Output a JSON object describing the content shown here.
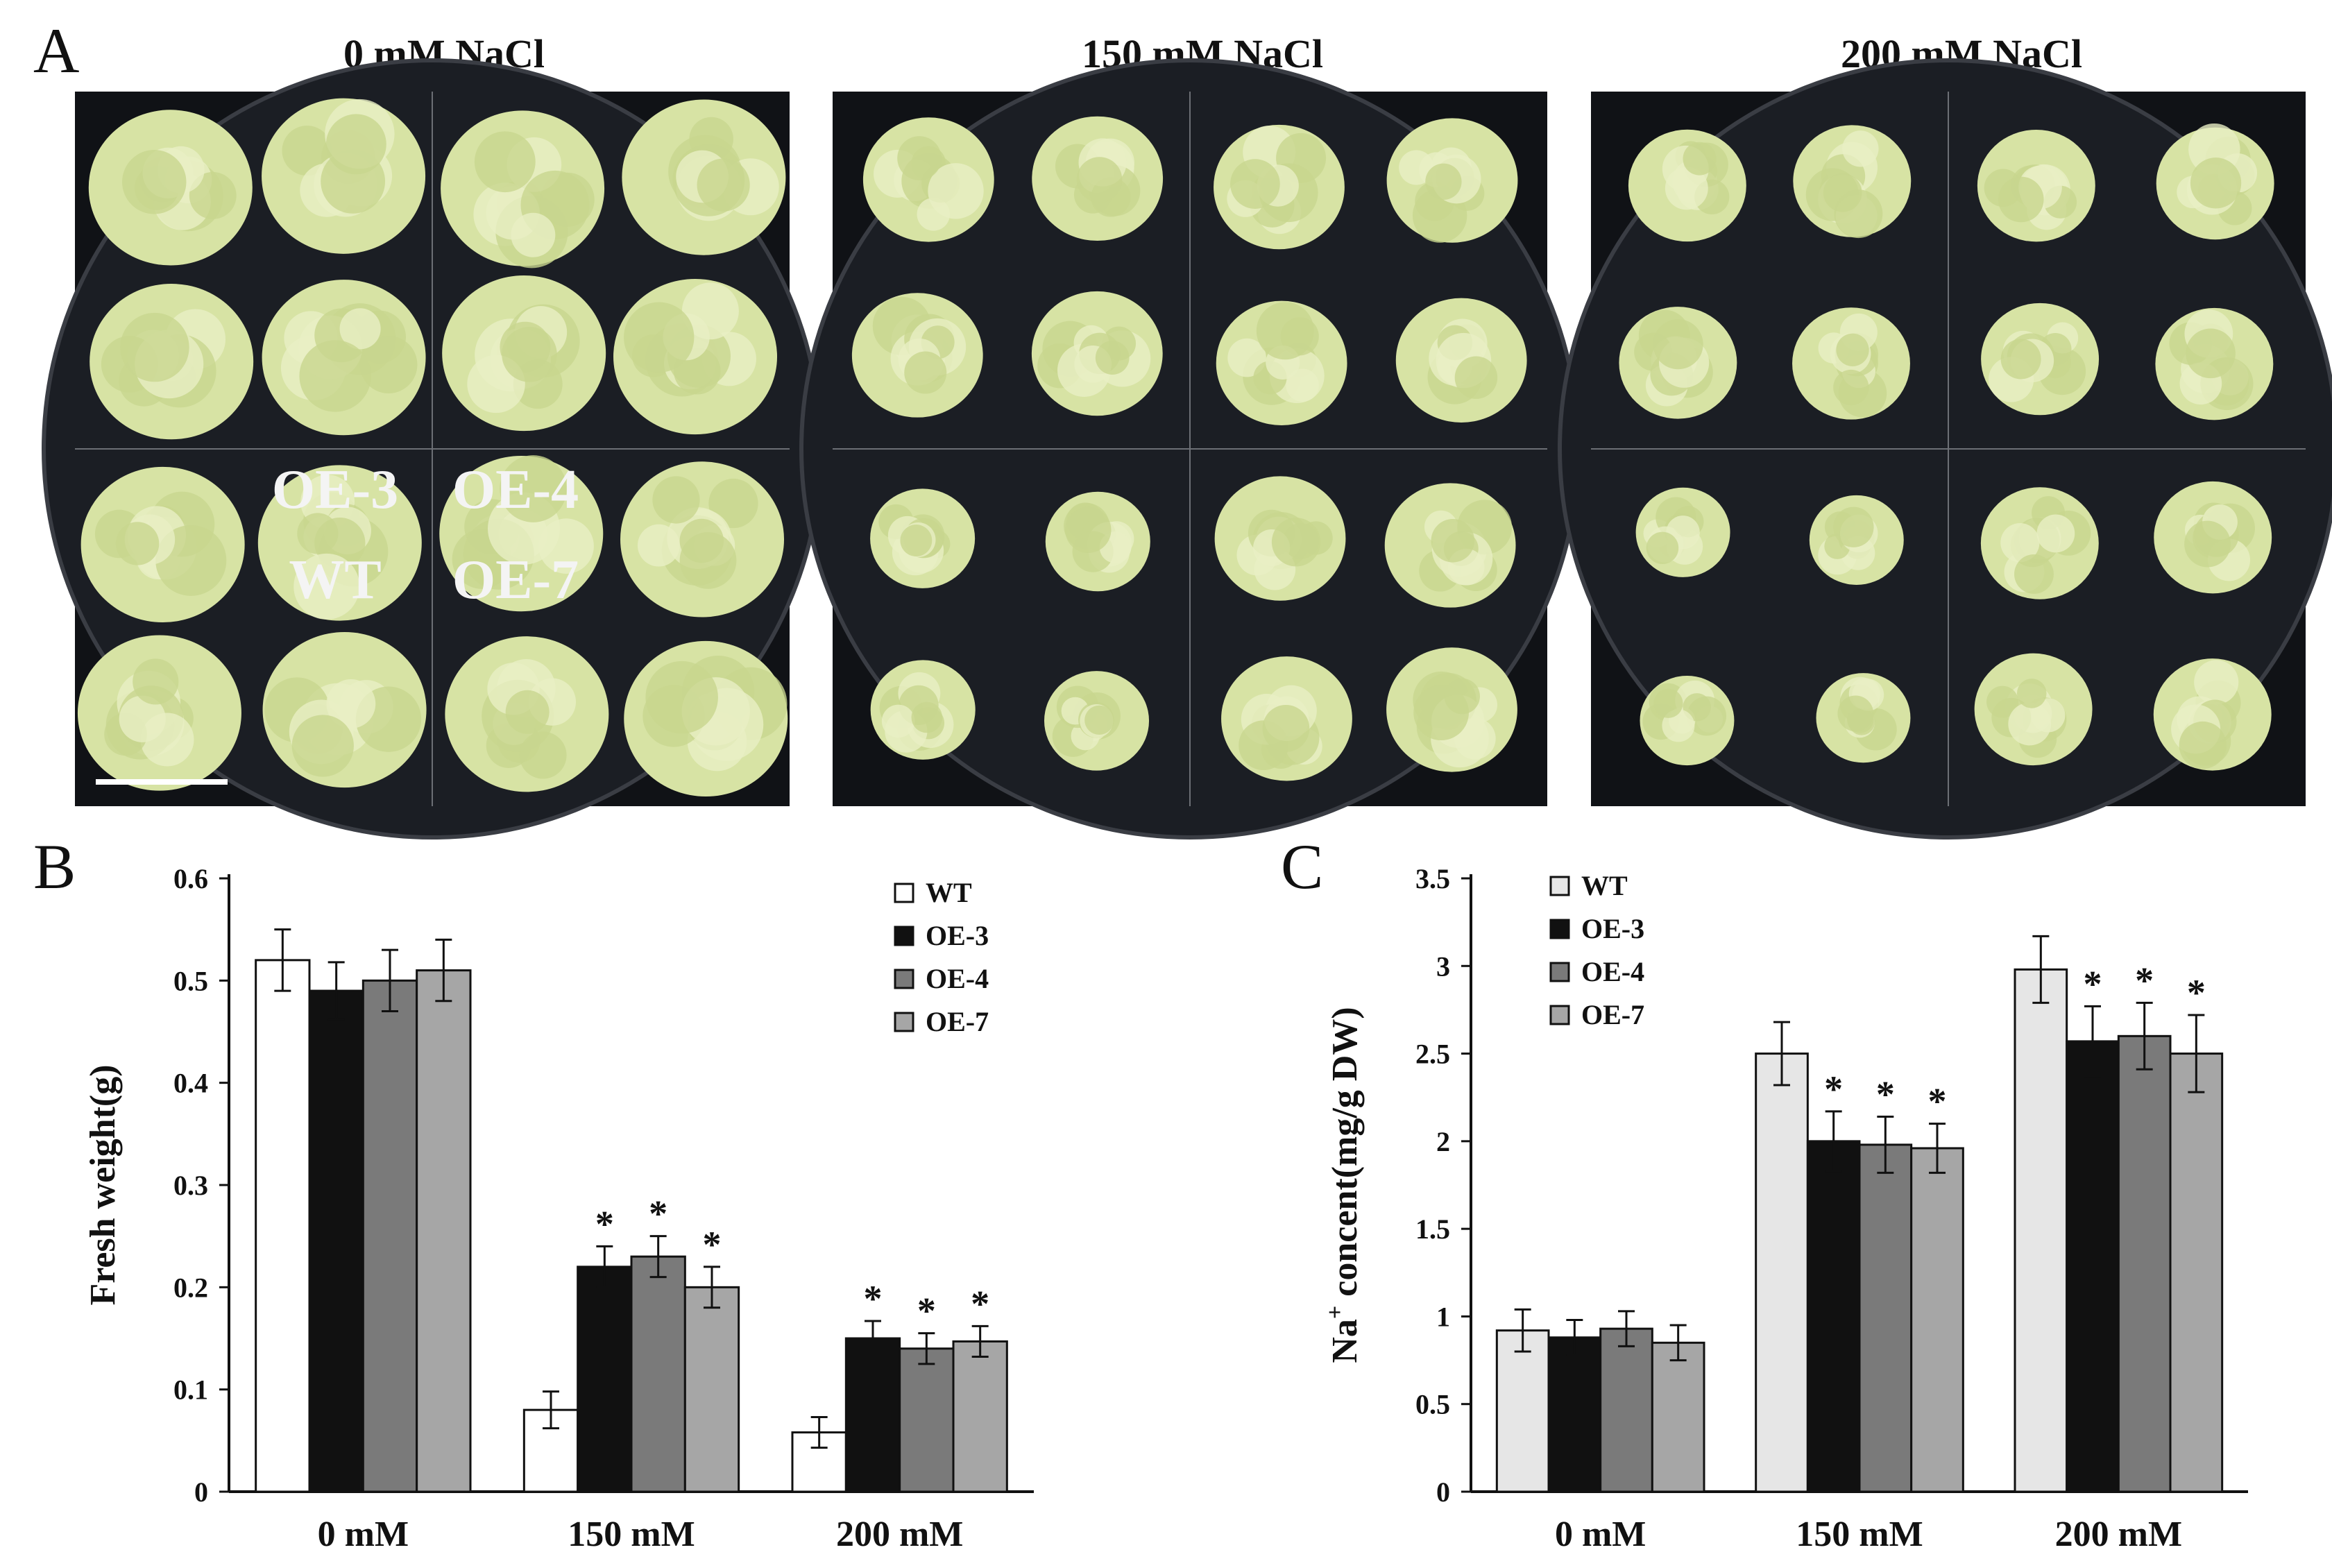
{
  "panel_a": {
    "letter": "A",
    "plates": [
      {
        "title": "0 mM NaCl",
        "labels": [
          "OE-3",
          "OE-4",
          "WT",
          "OE-7"
        ],
        "colony_level": 1.0
      },
      {
        "title": "150 mM NaCl",
        "labels": [],
        "colony_level": 0.8
      },
      {
        "title": "200 mM NaCl",
        "labels": [],
        "colony_level": 0.72
      }
    ]
  },
  "chart_data": [
    {
      "panel": "B",
      "type": "bar",
      "categories": [
        "0 mM",
        "150 mM",
        "200 mM"
      ],
      "ylabel": "Fresh weight(g)",
      "ylim": [
        0,
        0.6
      ],
      "yticks": [
        "0",
        "0.1",
        "0.2",
        "0.3",
        "0.4",
        "0.5",
        "0.6"
      ],
      "legend_position": "top-right",
      "series": [
        {
          "name": "WT",
          "color": "#ffffff",
          "values": [
            0.52,
            0.08,
            0.058
          ],
          "errors": [
            0.03,
            0.018,
            0.015
          ],
          "sig": [
            false,
            false,
            false
          ]
        },
        {
          "name": "OE-3",
          "color": "#111111",
          "values": [
            0.49,
            0.22,
            0.15
          ],
          "errors": [
            0.028,
            0.02,
            0.017
          ],
          "sig": [
            false,
            true,
            true
          ]
        },
        {
          "name": "OE-4",
          "color": "#7a7a7a",
          "values": [
            0.5,
            0.23,
            0.14
          ],
          "errors": [
            0.03,
            0.02,
            0.015
          ],
          "sig": [
            false,
            true,
            true
          ]
        },
        {
          "name": "OE-7",
          "color": "#a6a6a6",
          "values": [
            0.51,
            0.2,
            0.147
          ],
          "errors": [
            0.03,
            0.02,
            0.015
          ],
          "sig": [
            false,
            true,
            true
          ]
        }
      ],
      "sig_marker": "*"
    },
    {
      "panel": "C",
      "type": "bar",
      "categories": [
        "0 mM",
        "150 mM",
        "200 mM"
      ],
      "ylabel_main": "Na",
      "ylabel_sup": "+",
      "ylabel_rest": " concent(mg/g DW)",
      "ylim": [
        0,
        3.5
      ],
      "yticks": [
        "0",
        "0.5",
        "1",
        "1.5",
        "2",
        "2.5",
        "3",
        "3.5"
      ],
      "legend_position": "top-left",
      "series": [
        {
          "name": "WT",
          "color": "#e6e6e6",
          "values": [
            0.92,
            2.5,
            2.98
          ],
          "errors": [
            0.12,
            0.18,
            0.19
          ],
          "sig": [
            false,
            false,
            false
          ]
        },
        {
          "name": "OE-3",
          "color": "#111111",
          "values": [
            0.88,
            2.0,
            2.57
          ],
          "errors": [
            0.1,
            0.17,
            0.2
          ],
          "sig": [
            false,
            true,
            true
          ]
        },
        {
          "name": "OE-4",
          "color": "#7a7a7a",
          "values": [
            0.93,
            1.98,
            2.6
          ],
          "errors": [
            0.1,
            0.16,
            0.19
          ],
          "sig": [
            false,
            true,
            true
          ]
        },
        {
          "name": "OE-7",
          "color": "#a6a6a6",
          "values": [
            0.85,
            1.96,
            2.5
          ],
          "errors": [
            0.1,
            0.14,
            0.22
          ],
          "sig": [
            false,
            true,
            true
          ]
        }
      ],
      "sig_marker": "*"
    }
  ]
}
